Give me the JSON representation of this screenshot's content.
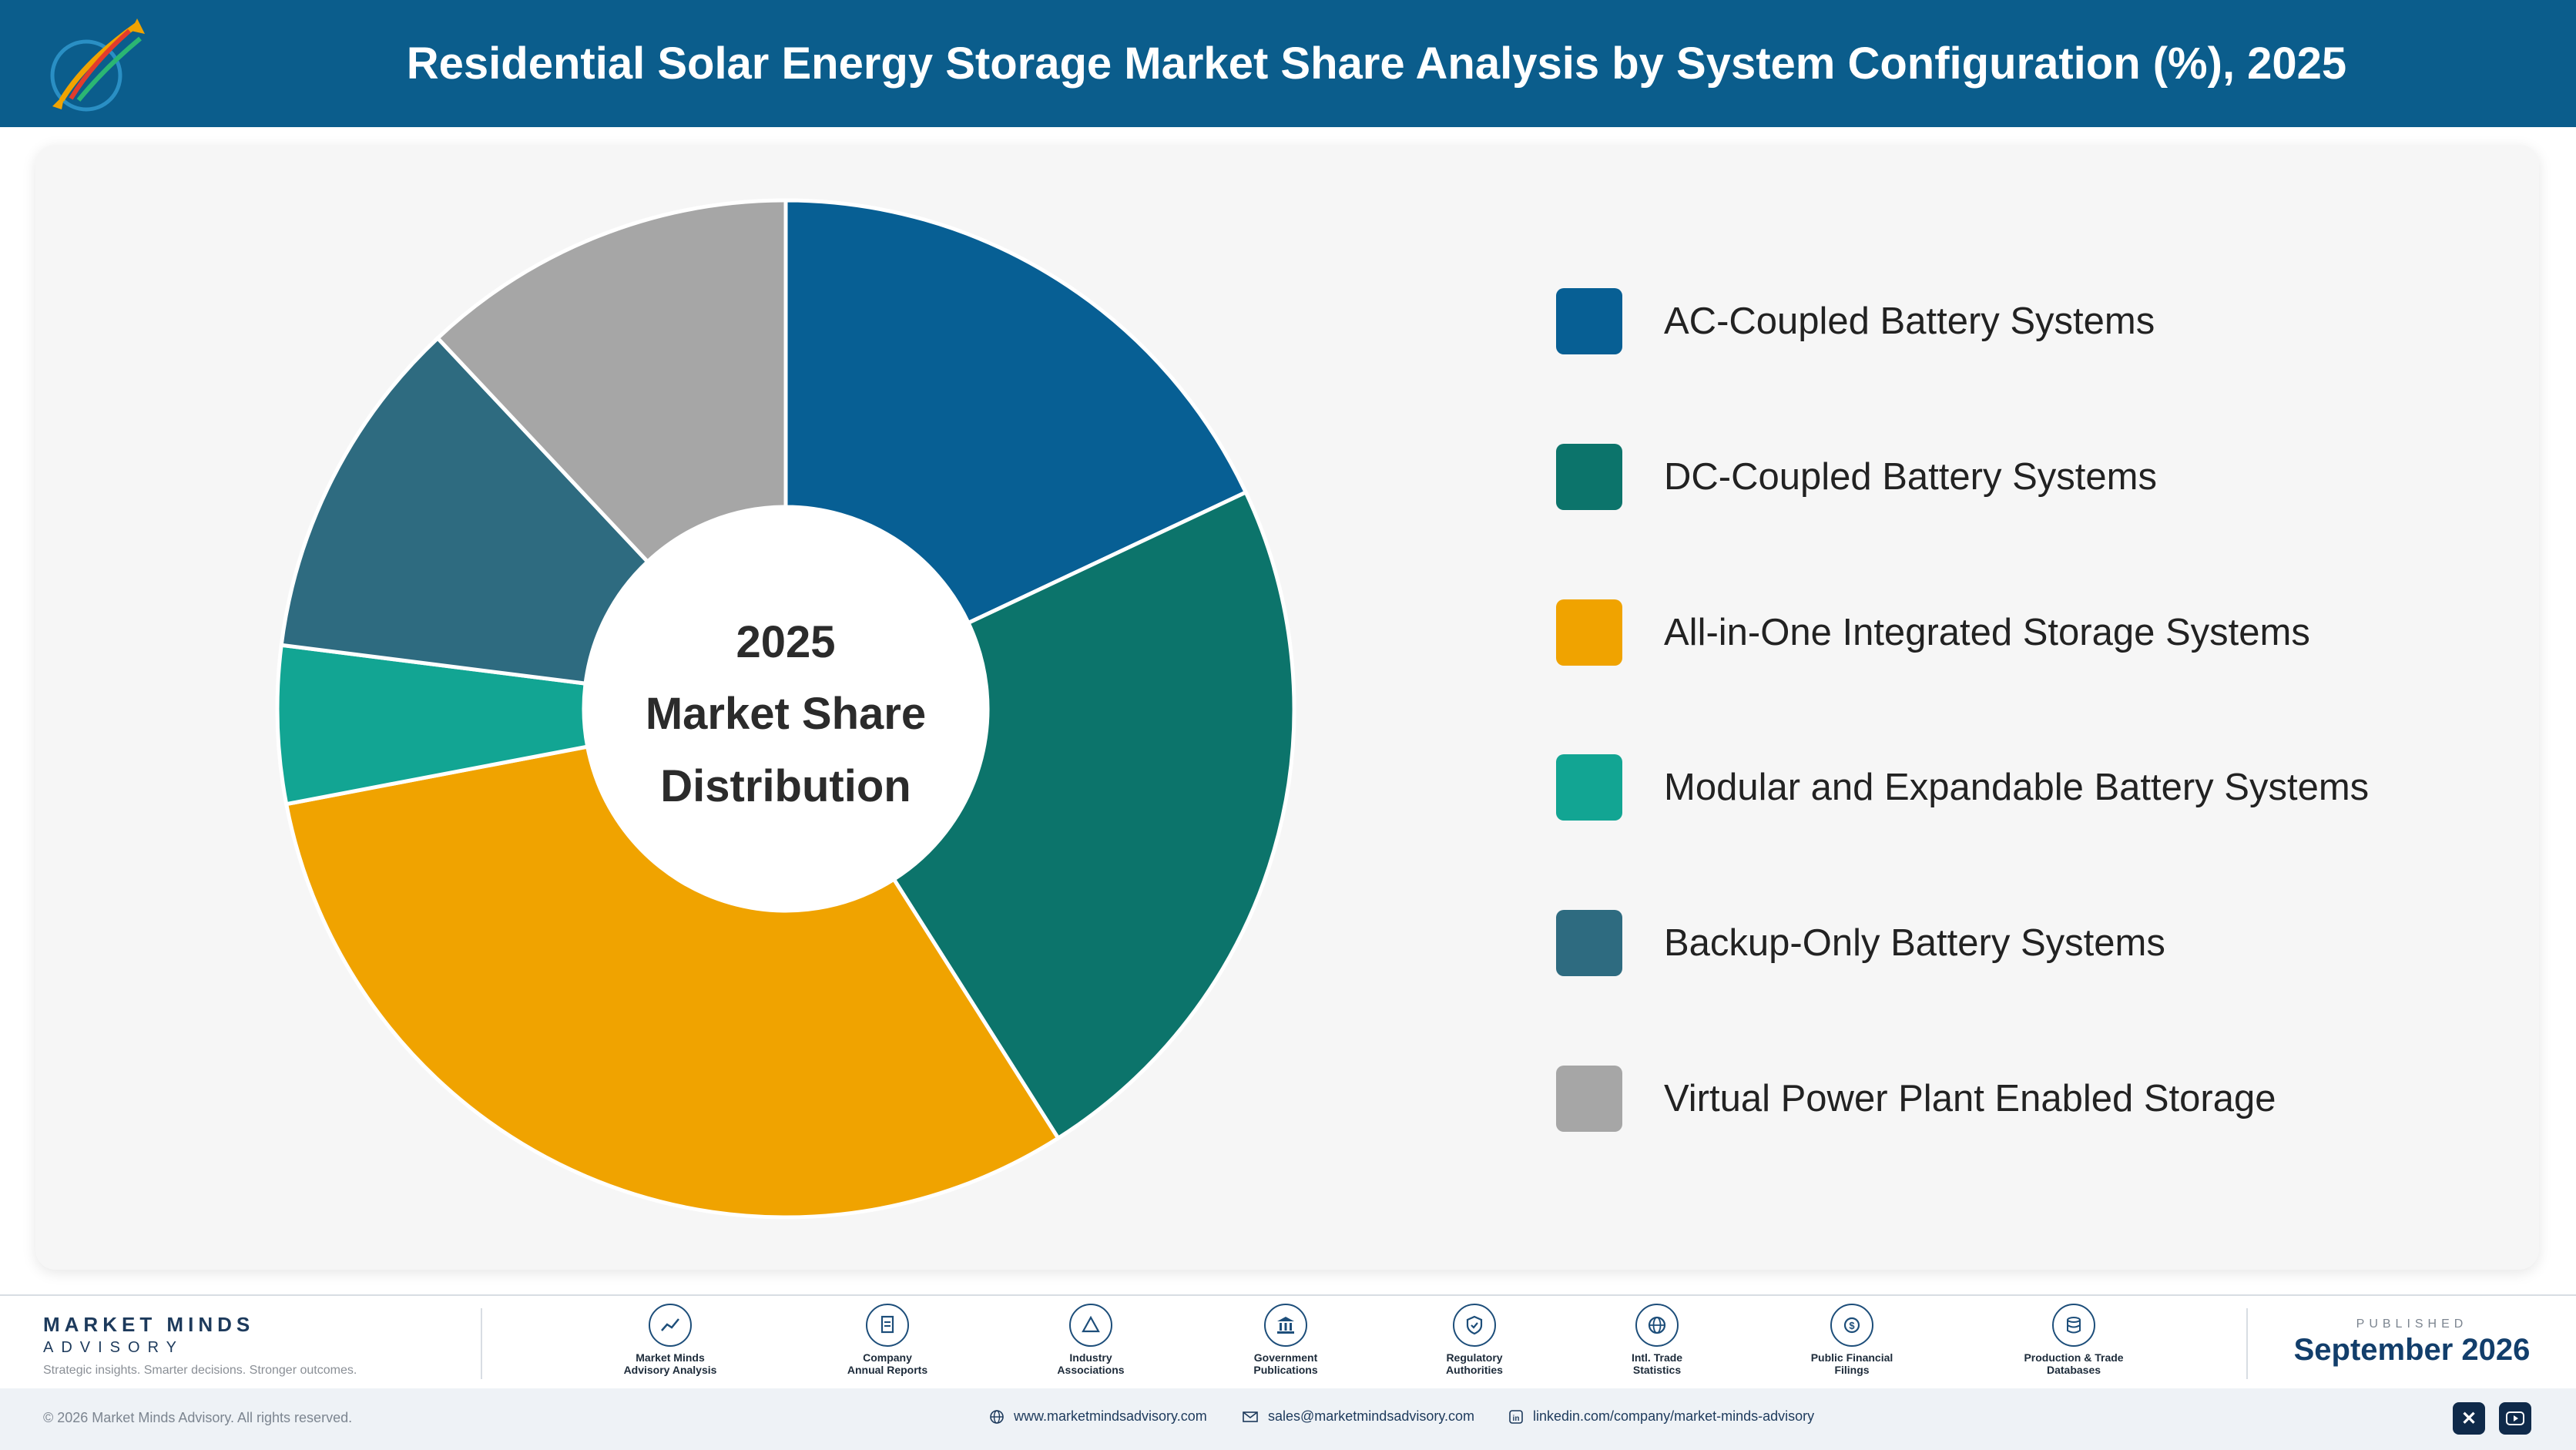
{
  "header": {
    "title": "Residential Solar Energy Storage Market Share Analysis by System Configuration (%), 2025",
    "logo_icon": "rocket-swoosh-logo"
  },
  "chart_data": {
    "type": "pie",
    "subtype": "donut",
    "center_label": [
      "2025",
      "Market Share",
      "Distribution"
    ],
    "legend_position": "right",
    "start_angle": "top",
    "direction": "clockwise",
    "categories": [
      "AC-Coupled Battery Systems",
      "DC-Coupled Battery Systems",
      "All-in-One Integrated Storage Systems",
      "Modular and Expandable Battery Systems",
      "Backup-Only Battery Systems",
      "Virtual Power Plant Enabled Storage"
    ],
    "values": [
      18,
      23,
      31,
      5,
      11,
      12
    ],
    "colors": [
      "#075f94",
      "#0c746b",
      "#f0a300",
      "#12a593",
      "#2e6b80",
      "#a6a6a6"
    ]
  },
  "footer": {
    "brand_name": "MARKET MINDS",
    "brand_sub": "ADVISORY",
    "brand_tagline": "Strategic insights. Smarter decisions. Stronger outcomes.",
    "sources": [
      {
        "label": "Market Minds\nAdvisory Analysis",
        "icon": "trend-line-icon"
      },
      {
        "label": "Company\nAnnual Reports",
        "icon": "document-icon"
      },
      {
        "label": "Industry\nAssociations",
        "icon": "network-icon"
      },
      {
        "label": "Government\nPublications",
        "icon": "government-building-icon"
      },
      {
        "label": "Regulatory\nAuthorities",
        "icon": "shield-check-icon"
      },
      {
        "label": "Intl. Trade\nStatistics",
        "icon": "globe-icon"
      },
      {
        "label": "Public Financial\nFilings",
        "icon": "currency-icon"
      },
      {
        "label": "Production & Trade\nDatabases",
        "icon": "database-icon"
      }
    ],
    "published_label": "PUBLISHED",
    "published_date": "September 2026"
  },
  "bottom_bar": {
    "copyright": "© 2026 Market Minds Advisory. All rights reserved.",
    "website": "www.marketmindsadvisory.com",
    "email": "sales@marketmindsadvisory.com",
    "linkedin": "linkedin.com/company/market-minds-advisory",
    "social": [
      "x-icon",
      "youtube-icon"
    ]
  }
}
